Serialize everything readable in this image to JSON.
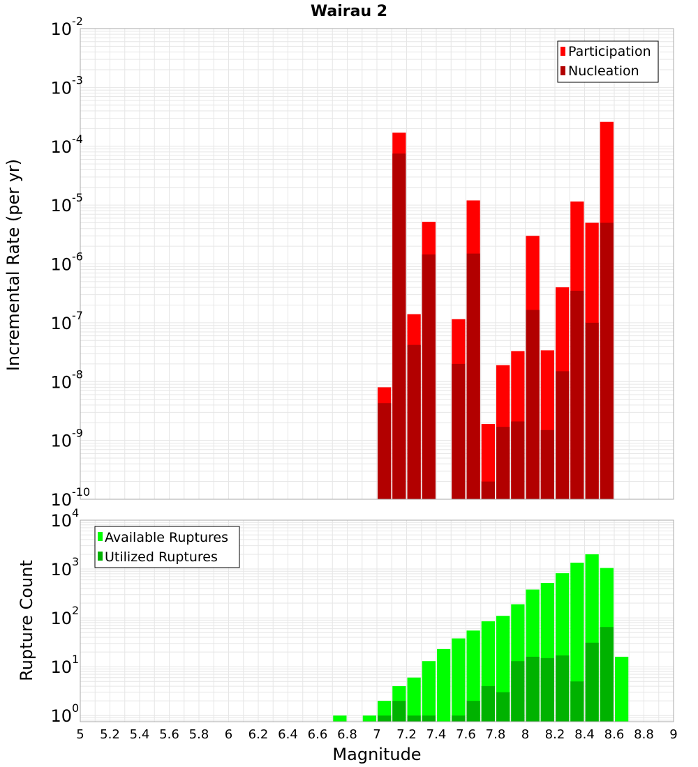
{
  "chart_data": [
    {
      "type": "bar",
      "title": "Wairau 2",
      "ylabel": "Incremental Rate (per yr)",
      "yscale": "log",
      "ylim": [
        1e-10,
        0.01
      ],
      "xlim": [
        5,
        9
      ],
      "grid": true,
      "legend_position": "top-right",
      "y_tick_labels": [
        {
          "base": "10",
          "exp": "-10"
        },
        {
          "base": "10",
          "exp": "-9"
        },
        {
          "base": "10",
          "exp": "-8"
        },
        {
          "base": "10",
          "exp": "-7"
        },
        {
          "base": "10",
          "exp": "-6"
        },
        {
          "base": "10",
          "exp": "-5"
        },
        {
          "base": "10",
          "exp": "-4"
        },
        {
          "base": "10",
          "exp": "-3"
        },
        {
          "base": "10",
          "exp": "-2"
        }
      ],
      "x": [
        7.05,
        7.15,
        7.25,
        7.35,
        7.45,
        7.55,
        7.65,
        7.75,
        7.85,
        7.95,
        8.05,
        8.15,
        8.25,
        8.35,
        8.45,
        8.55
      ],
      "series": [
        {
          "name": "Participation",
          "color": "#ff0000",
          "values": [
            8e-09,
            0.00017,
            1.4e-07,
            5.2e-06,
            null,
            1.15e-07,
            1.2e-05,
            1.9e-09,
            1.9e-08,
            3.3e-08,
            3e-06,
            3.4e-08,
            4e-07,
            1.15e-05,
            5e-06,
            0.00026
          ]
        },
        {
          "name": "Nucleation",
          "color": "#b20000",
          "values": [
            4.3e-09,
            7.5e-05,
            4.2e-08,
            1.45e-06,
            null,
            2e-08,
            1.5e-06,
            2e-10,
            1.7e-09,
            2.1e-09,
            1.65e-07,
            1.5e-09,
            1.5e-08,
            3.5e-07,
            1e-07,
            5e-06
          ]
        }
      ]
    },
    {
      "type": "bar",
      "ylabel": "Rupture Count",
      "xlabel": "Magnitude",
      "yscale": "log",
      "ylim": [
        0.75,
        10000
      ],
      "xlim": [
        5,
        9
      ],
      "grid": true,
      "legend_position": "top-left",
      "y_tick_labels": [
        {
          "base": "10",
          "exp": "0"
        },
        {
          "base": "10",
          "exp": "1"
        },
        {
          "base": "10",
          "exp": "2"
        },
        {
          "base": "10",
          "exp": "3"
        },
        {
          "base": "10",
          "exp": "4"
        }
      ],
      "x_tick_labels": [
        "5",
        "5.2",
        "5.4",
        "5.6",
        "5.8",
        "6",
        "6.2",
        "6.4",
        "6.6",
        "6.8",
        "7",
        "7.2",
        "7.4",
        "7.6",
        "7.8",
        "8",
        "8.2",
        "8.4",
        "8.6",
        "8.8",
        "9"
      ],
      "x": [
        6.75,
        6.85,
        6.95,
        7.05,
        7.15,
        7.25,
        7.35,
        7.45,
        7.55,
        7.65,
        7.75,
        7.85,
        7.95,
        8.05,
        8.15,
        8.25,
        8.35,
        8.45,
        8.55,
        8.65
      ],
      "series": [
        {
          "name": "Available Ruptures",
          "color": "#00ff00",
          "values": [
            1,
            null,
            1,
            2,
            4,
            6,
            13,
            23,
            38,
            55,
            85,
            110,
            190,
            380,
            520,
            820,
            1350,
            2000,
            1050,
            16
          ]
        },
        {
          "name": "Utilized Ruptures",
          "color": "#00b200",
          "values": [
            null,
            null,
            null,
            1,
            2,
            1,
            1,
            null,
            1,
            2,
            4,
            3,
            13,
            16,
            15,
            17,
            5,
            31,
            65,
            null
          ]
        }
      ]
    }
  ]
}
